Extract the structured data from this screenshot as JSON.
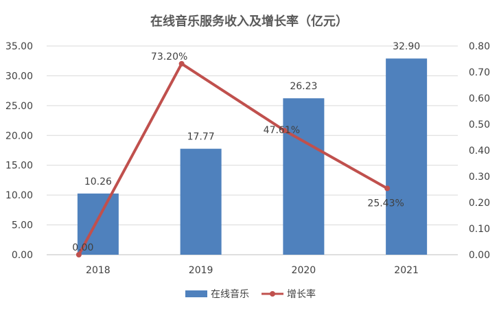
{
  "chart_data": {
    "type": "bar",
    "title": "在线音乐服务收入及增长率（亿元）",
    "categories": [
      "2018",
      "2019",
      "2020",
      "2021"
    ],
    "series": [
      {
        "name": "在线音乐",
        "type": "bar",
        "axis": "left",
        "values": [
          10.26,
          17.77,
          26.23,
          32.9
        ],
        "labels": [
          "10.26",
          "17.77",
          "26.23",
          "32.90"
        ],
        "color": "#4F81BD"
      },
      {
        "name": "增长率",
        "type": "line",
        "axis": "right",
        "values": [
          0.0,
          0.732,
          0.4761,
          0.2543
        ],
        "labels": [
          "0.00",
          "73.20%",
          "47.61%",
          "25.43%"
        ],
        "color": "#C0504D"
      }
    ],
    "y_left": {
      "ylim": [
        0,
        35
      ],
      "ticks": [
        "0.00",
        "5.00",
        "10.00",
        "15.00",
        "20.00",
        "25.00",
        "30.00",
        "35.00"
      ]
    },
    "y_right": {
      "ylim": [
        0,
        0.8
      ],
      "ticks": [
        "0.00",
        "0.10",
        "0.20",
        "0.30",
        "0.40",
        "0.50",
        "0.60",
        "0.70",
        "0.80"
      ]
    },
    "grid": true,
    "legend": "bottom"
  }
}
